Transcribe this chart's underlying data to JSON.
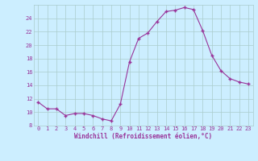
{
  "x": [
    0,
    1,
    2,
    3,
    4,
    5,
    6,
    7,
    8,
    9,
    10,
    11,
    12,
    13,
    14,
    15,
    16,
    17,
    18,
    19,
    20,
    21,
    22,
    23
  ],
  "y": [
    11.5,
    10.5,
    10.5,
    9.5,
    9.8,
    9.8,
    9.5,
    9.0,
    8.7,
    11.2,
    17.5,
    21.0,
    21.8,
    23.5,
    25.0,
    25.2,
    25.6,
    25.3,
    22.2,
    18.5,
    16.2,
    15.0,
    14.5,
    14.2
  ],
  "line_color": "#993399",
  "marker": "+",
  "bg_color": "#cceeff",
  "grid_color": "#aacccc",
  "xlabel": "Windchill (Refroidissement éolien,°C)",
  "xlabel_color": "#993399",
  "tick_color": "#993399",
  "ylim": [
    8,
    26
  ],
  "yticks": [
    8,
    10,
    12,
    14,
    16,
    18,
    20,
    22,
    24
  ],
  "xlim": [
    -0.5,
    23.5
  ],
  "xticklabels": [
    "0",
    "1",
    "2",
    "3",
    "4",
    "5",
    "6",
    "7",
    "8",
    "9",
    "10",
    "11",
    "12",
    "13",
    "14",
    "15",
    "16",
    "17",
    "18",
    "19",
    "20",
    "21",
    "22",
    "23"
  ]
}
